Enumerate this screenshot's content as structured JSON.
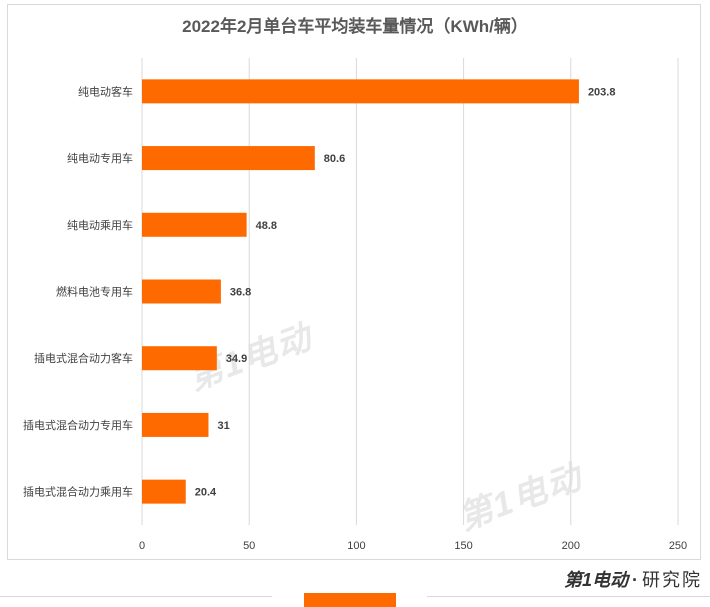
{
  "chart_data": {
    "type": "bar",
    "orientation": "horizontal",
    "title": "2022年2月单台车平均装车量情况（KWh/辆）",
    "categories": [
      "纯电动客车",
      "纯电动专用车",
      "纯电动乘用车",
      "燃料电池专用车",
      "插电式混合动力客车",
      "插电式混合动力专用车",
      "插电式混合动力乘用车"
    ],
    "values": [
      203.8,
      80.6,
      48.8,
      36.8,
      34.9,
      31,
      20.4
    ],
    "value_labels": [
      "203.8",
      "80.6",
      "48.8",
      "36.8",
      "34.9",
      "31",
      "20.4"
    ],
    "xlim": [
      0,
      250
    ],
    "xticks": [
      0,
      50,
      100,
      150,
      200,
      250
    ],
    "xtick_labels": [
      "0",
      "50",
      "100",
      "150",
      "200",
      "250"
    ],
    "grid": "vertical",
    "bar_color": "#ff6a00"
  },
  "watermark": "第1电动",
  "footer": {
    "brand": "第1电动",
    "separator": "·",
    "suffix": "研究院"
  }
}
